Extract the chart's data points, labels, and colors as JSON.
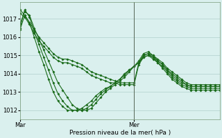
{
  "xlabel": "Pression niveau de la mer( hPa )",
  "x_ticks_labels": [
    "Mar",
    "Mer"
  ],
  "ylim": [
    1011.5,
    1017.9
  ],
  "yticks": [
    1012,
    1013,
    1014,
    1015,
    1016,
    1017
  ],
  "xlim": [
    0,
    42
  ],
  "x_mar": 0,
  "x_mer": 24,
  "x_end": 42,
  "bg_color": "#daf0ee",
  "grid_color": "#b0d0cc",
  "line_color": "#1a6b1a",
  "vline_color": "#556655",
  "series": [
    [
      1017.5,
      1017.2,
      1016.8,
      1016.4,
      1016.0,
      1015.7,
      1015.4,
      1015.1,
      1014.9,
      1014.8,
      1014.8,
      1014.7,
      1014.6,
      1014.5,
      1014.3,
      1014.1,
      1014.0,
      1013.9,
      1013.8,
      1013.7,
      1013.6,
      1013.5,
      1013.5,
      1013.5,
      1013.5,
      1014.6,
      1015.0,
      1015.1,
      1015.0,
      1014.8,
      1014.6,
      1014.3,
      1014.1,
      1013.9,
      1013.7,
      1013.5,
      1013.4,
      1013.4,
      1013.4,
      1013.4,
      1013.4,
      1013.4,
      1013.4
    ],
    [
      1017.3,
      1017.1,
      1016.7,
      1016.2,
      1015.8,
      1015.5,
      1015.2,
      1014.9,
      1014.7,
      1014.6,
      1014.6,
      1014.5,
      1014.4,
      1014.3,
      1014.1,
      1013.9,
      1013.8,
      1013.7,
      1013.6,
      1013.5,
      1013.5,
      1013.4,
      1013.4,
      1013.4,
      1013.4,
      1014.5,
      1014.9,
      1015.0,
      1014.9,
      1014.7,
      1014.5,
      1014.2,
      1014.0,
      1013.8,
      1013.6,
      1013.4,
      1013.3,
      1013.3,
      1013.3,
      1013.3,
      1013.3,
      1013.3,
      1013.3
    ],
    [
      1016.7,
      1017.4,
      1017.2,
      1016.5,
      1015.9,
      1015.3,
      1014.7,
      1014.1,
      1013.5,
      1013.1,
      1012.7,
      1012.3,
      1012.1,
      1012.0,
      1012.0,
      1012.1,
      1012.4,
      1012.7,
      1013.0,
      1013.2,
      1013.4,
      1013.6,
      1013.8,
      1014.1,
      1014.4,
      1014.7,
      1015.1,
      1015.2,
      1015.0,
      1014.7,
      1014.5,
      1014.2,
      1013.9,
      1013.7,
      1013.5,
      1013.4,
      1013.3,
      1013.3,
      1013.3,
      1013.3,
      1013.3,
      1013.3,
      1013.3
    ],
    [
      1016.5,
      1017.5,
      1017.1,
      1016.3,
      1015.6,
      1014.9,
      1014.2,
      1013.5,
      1012.9,
      1012.5,
      1012.2,
      1012.0,
      1012.0,
      1012.0,
      1012.1,
      1012.3,
      1012.6,
      1012.9,
      1013.1,
      1013.3,
      1013.5,
      1013.7,
      1013.9,
      1014.2,
      1014.4,
      1014.6,
      1015.0,
      1015.1,
      1014.9,
      1014.6,
      1014.4,
      1014.1,
      1013.8,
      1013.6,
      1013.4,
      1013.3,
      1013.2,
      1013.2,
      1013.2,
      1013.2,
      1013.2,
      1013.2,
      1013.2
    ],
    [
      1016.4,
      1017.2,
      1016.8,
      1016.0,
      1015.2,
      1014.5,
      1013.7,
      1013.0,
      1012.5,
      1012.2,
      1012.0,
      1012.0,
      1012.0,
      1012.1,
      1012.3,
      1012.5,
      1012.8,
      1013.0,
      1013.2,
      1013.3,
      1013.5,
      1013.7,
      1014.0,
      1014.2,
      1014.4,
      1014.6,
      1014.9,
      1015.0,
      1014.8,
      1014.6,
      1014.3,
      1014.0,
      1013.7,
      1013.5,
      1013.3,
      1013.2,
      1013.1,
      1013.1,
      1013.1,
      1013.1,
      1013.1,
      1013.1,
      1013.1
    ]
  ]
}
